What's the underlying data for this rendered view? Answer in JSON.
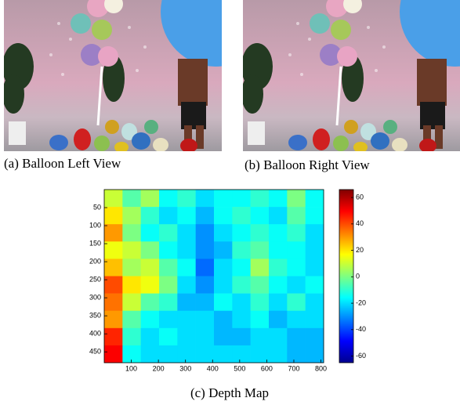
{
  "panels": [
    {
      "caption": "(a) Balloon Left View"
    },
    {
      "caption": "(b) Balloon Right View"
    }
  ],
  "chart_data": {
    "type": "heatmap",
    "caption": "(c) Depth Map",
    "xlim": [
      0,
      810
    ],
    "ylim": [
      0,
      480
    ],
    "y_reversed": true,
    "xticks": [
      100,
      200,
      300,
      400,
      500,
      600,
      700,
      800
    ],
    "yticks": [
      50,
      100,
      150,
      200,
      250,
      300,
      350,
      400,
      450
    ],
    "colormap": "jet",
    "clim": [
      -65,
      66
    ],
    "colorbar_ticks": [
      60,
      40,
      20,
      0,
      -20,
      -40,
      -60
    ],
    "values": [
      [
        10,
        -5,
        5,
        -15,
        -10,
        -20,
        -15,
        -15,
        -10,
        -15,
        0,
        -15
      ],
      [
        20,
        5,
        -10,
        -20,
        -15,
        -25,
        -15,
        -10,
        -15,
        -20,
        -5,
        -15
      ],
      [
        30,
        0,
        -15,
        -10,
        -20,
        -30,
        -20,
        -15,
        -10,
        -15,
        -10,
        -20
      ],
      [
        15,
        10,
        0,
        -15,
        -20,
        -30,
        -25,
        -10,
        -5,
        -15,
        -15,
        -20
      ],
      [
        25,
        5,
        10,
        -5,
        -15,
        -35,
        -20,
        -15,
        5,
        -10,
        -15,
        -20
      ],
      [
        40,
        20,
        15,
        0,
        -20,
        -30,
        -20,
        -10,
        -5,
        -15,
        -20,
        -15
      ],
      [
        35,
        10,
        -5,
        -10,
        -25,
        -25,
        -15,
        -20,
        -10,
        -20,
        -10,
        -20
      ],
      [
        30,
        -5,
        -15,
        -20,
        -20,
        -20,
        -25,
        -20,
        -15,
        -25,
        -20,
        -20
      ],
      [
        45,
        -10,
        -20,
        -15,
        -20,
        -20,
        -25,
        -25,
        -20,
        -20,
        -25,
        -25
      ],
      [
        50,
        -15,
        -20,
        -20,
        -20,
        -20,
        -20,
        -20,
        -20,
        -20,
        -25,
        -25
      ]
    ]
  }
}
